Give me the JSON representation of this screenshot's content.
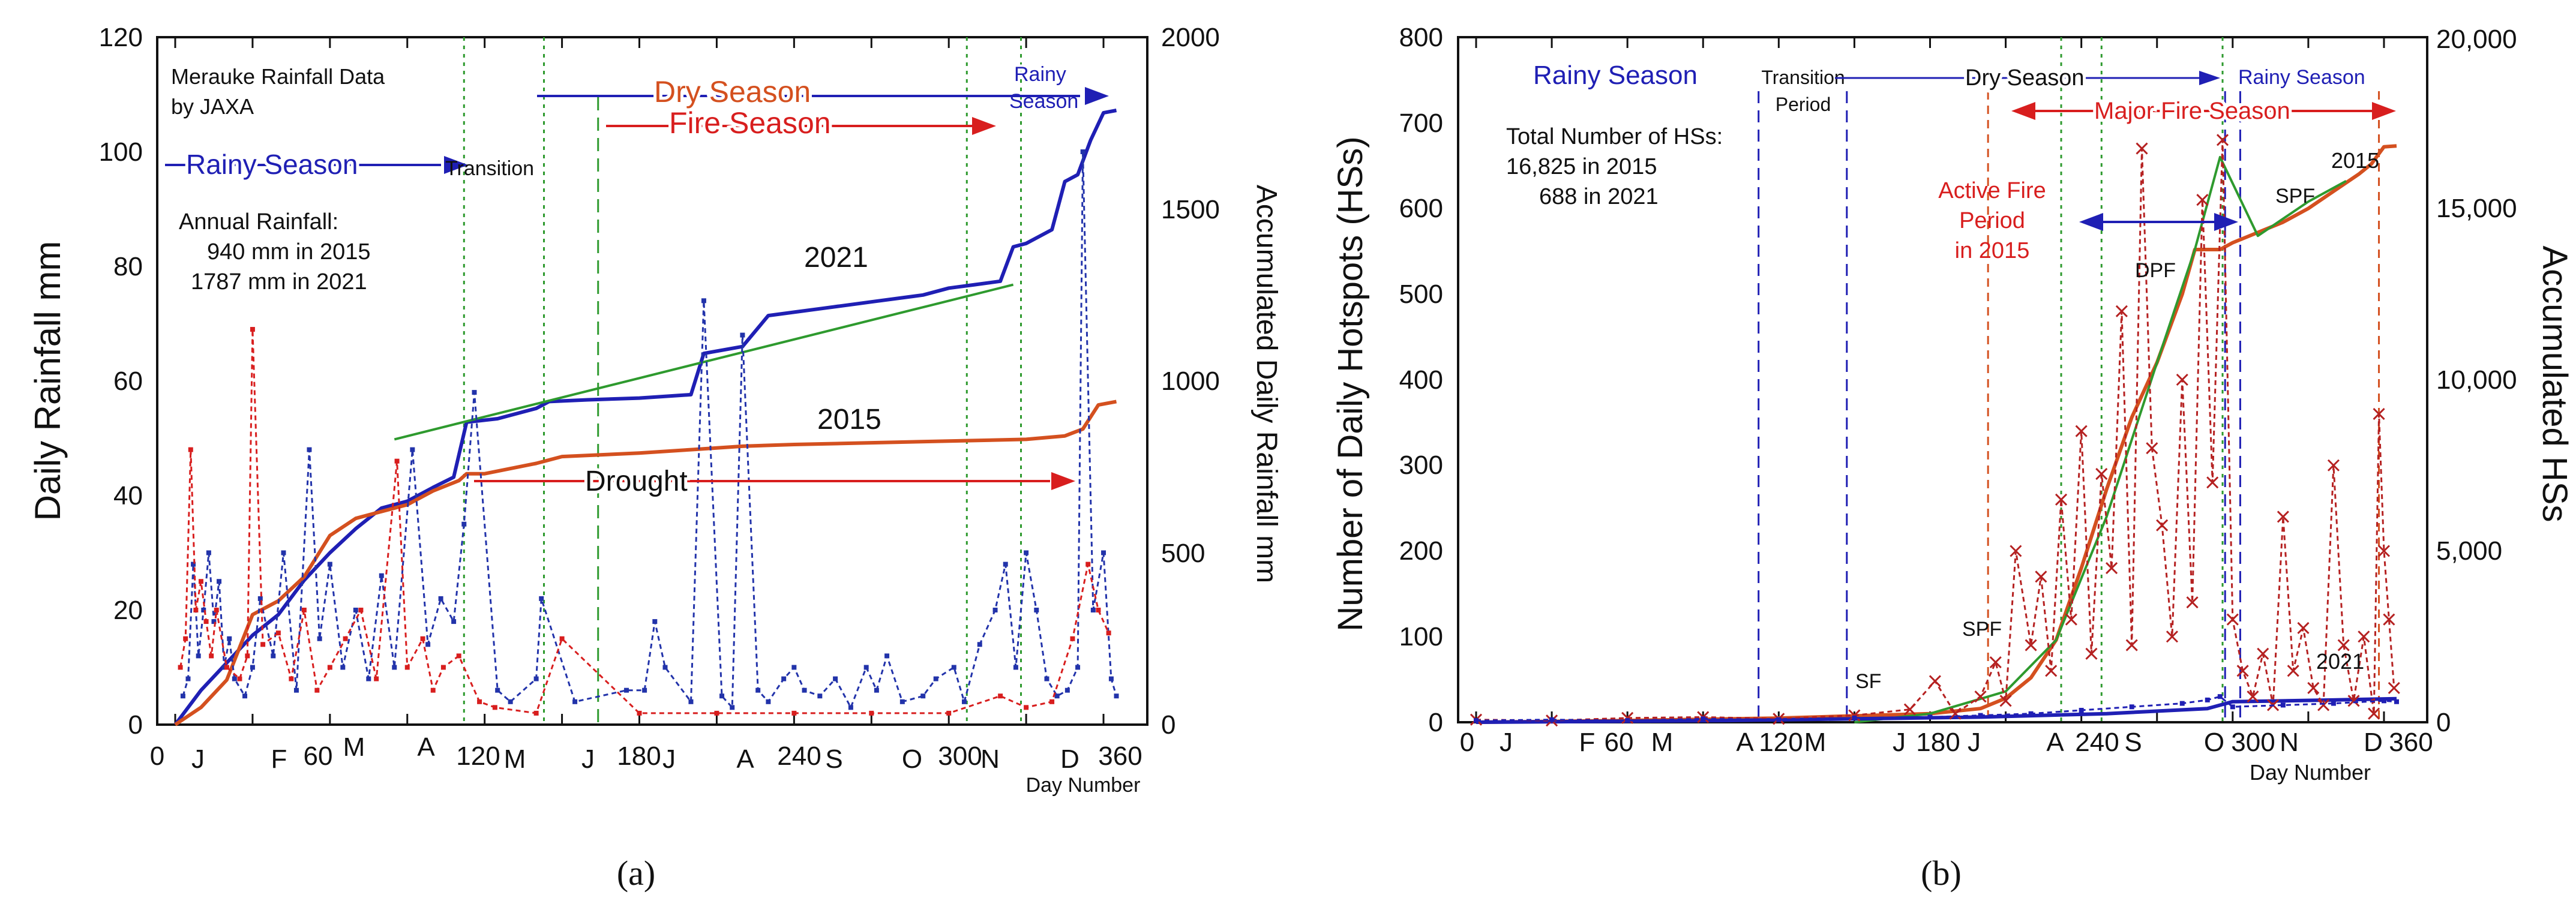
{
  "colors": {
    "blue": "#1f1fb4",
    "navy": "#2233aa",
    "red": "#d81e1e",
    "darkred": "#b52121",
    "orange": "#d4501f",
    "green": "#2e9a2e",
    "black": "#111111"
  },
  "chart_data": [
    {
      "id": "a",
      "panel_label": "(a)",
      "type": "line",
      "title": "",
      "x_axis": {
        "label": "Day Number",
        "range": [
          0,
          370
        ],
        "ticks": [
          "0",
          "120",
          "180",
          "240",
          "300",
          "360"
        ],
        "ticks_small": [
          "60"
        ],
        "month_labels": [
          "J",
          "F",
          "M",
          "A",
          "M",
          "J",
          "J",
          "A",
          "S",
          "O",
          "N",
          "D"
        ]
      },
      "y_axis_left": {
        "label": "Daily Rainfall   mm",
        "range": [
          0,
          120
        ],
        "ticks": [
          "0",
          "20",
          "40",
          "60",
          "80",
          "100",
          "120"
        ]
      },
      "y_axis_right": {
        "label": "Accumulated Daily Rainfall   mm",
        "range": [
          0,
          2000
        ],
        "ticks": [
          "0",
          "500",
          "1000",
          "1500",
          "2000"
        ]
      },
      "annotations": {
        "source1": "Merauke Rainfall Data",
        "source2": "by JAXA",
        "rainy": "Rainy Season",
        "transition": "Transition",
        "dry": "Dry Season",
        "fire": "Fire Season",
        "rainy2a": "Rainy",
        "rainy2b": "Season",
        "annual": "Annual Rainfall:",
        "annual2015": "940 mm in 2015",
        "annual2021": "1787 mm in 2021",
        "y2021": "2021",
        "y2015": "2015",
        "drought": "Drought"
      },
      "vlines_green": [
        112,
        143,
        307,
        328
      ],
      "vlines_green_dashed": [
        164
      ],
      "series": [
        {
          "name": "2021 accumulated",
          "axis": "right",
          "color": "blue",
          "x": [
            0,
            10,
            20,
            30,
            40,
            50,
            60,
            70,
            80,
            90,
            100,
            108,
            113,
            125,
            140,
            145,
            160,
            180,
            200,
            205,
            220,
            230,
            240,
            250,
            270,
            290,
            300,
            310,
            320,
            325,
            330,
            340,
            345,
            350,
            355,
            360,
            365
          ],
          "y": [
            0,
            100,
            180,
            260,
            320,
            420,
            500,
            570,
            630,
            650,
            690,
            720,
            880,
            890,
            920,
            940,
            945,
            950,
            960,
            1080,
            1100,
            1190,
            1200,
            1210,
            1230,
            1250,
            1270,
            1280,
            1290,
            1390,
            1400,
            1440,
            1580,
            1600,
            1700,
            1780,
            1787
          ]
        },
        {
          "name": "2015 accumulated",
          "axis": "right",
          "color": "orange",
          "x": [
            0,
            10,
            20,
            30,
            40,
            50,
            60,
            70,
            80,
            90,
            100,
            110,
            113,
            120,
            140,
            150,
            180,
            200,
            220,
            240,
            270,
            300,
            330,
            345,
            352,
            358,
            365
          ],
          "y": [
            0,
            50,
            130,
            320,
            360,
            430,
            550,
            600,
            620,
            640,
            680,
            710,
            730,
            730,
            760,
            780,
            790,
            800,
            810,
            815,
            820,
            825,
            830,
            840,
            860,
            930,
            940
          ]
        },
        {
          "name": "2021 trend",
          "axis": "right",
          "color": "green",
          "x": [
            85,
            325
          ],
          "y": [
            830,
            1280
          ]
        },
        {
          "name": "2021 daily",
          "axis": "left",
          "color": "navy",
          "x": [
            3,
            5,
            7,
            9,
            11,
            13,
            15,
            17,
            19,
            21,
            23,
            27,
            30,
            33,
            38,
            42,
            47,
            52,
            56,
            60,
            65,
            70,
            75,
            80,
            85,
            92,
            98,
            103,
            108,
            112,
            116,
            125,
            130,
            140,
            142,
            155,
            175,
            182,
            186,
            190,
            200,
            205,
            212,
            216,
            220,
            226,
            230,
            236,
            240,
            244,
            250,
            256,
            262,
            268,
            272,
            276,
            282,
            290,
            295,
            302,
            306,
            312,
            318,
            322,
            326,
            330,
            334,
            338,
            342,
            346,
            350,
            352,
            356,
            360,
            363,
            365
          ],
          "y": [
            5,
            8,
            28,
            12,
            20,
            30,
            18,
            25,
            10,
            15,
            8,
            5,
            10,
            22,
            12,
            30,
            6,
            48,
            15,
            28,
            10,
            20,
            8,
            26,
            10,
            48,
            14,
            22,
            18,
            35,
            58,
            6,
            4,
            8,
            22,
            4,
            6,
            6,
            18,
            10,
            4,
            74,
            5,
            3,
            68,
            6,
            4,
            8,
            10,
            6,
            5,
            8,
            3,
            10,
            6,
            12,
            4,
            5,
            8,
            10,
            4,
            14,
            20,
            28,
            10,
            30,
            20,
            8,
            5,
            6,
            10,
            100,
            20,
            30,
            8,
            5
          ]
        },
        {
          "name": "2015 daily",
          "axis": "left",
          "color": "red",
          "x": [
            2,
            4,
            6,
            8,
            10,
            12,
            14,
            16,
            20,
            25,
            28,
            30,
            34,
            40,
            45,
            50,
            55,
            60,
            66,
            72,
            78,
            86,
            90,
            96,
            100,
            104,
            110,
            118,
            124,
            140,
            150,
            180,
            210,
            240,
            270,
            300,
            320,
            330,
            340,
            348,
            354,
            358,
            362
          ],
          "y": [
            10,
            15,
            48,
            20,
            25,
            18,
            12,
            20,
            10,
            8,
            12,
            69,
            14,
            16,
            8,
            20,
            6,
            10,
            15,
            20,
            8,
            46,
            10,
            15,
            6,
            10,
            12,
            4,
            3,
            2,
            15,
            2,
            2,
            2,
            2,
            2,
            5,
            3,
            4,
            15,
            28,
            20,
            16
          ]
        }
      ]
    },
    {
      "id": "b",
      "panel_label": "(b)",
      "type": "line",
      "title": "",
      "x_axis": {
        "label": "Day Number",
        "range": [
          0,
          370
        ],
        "ticks": [
          "0",
          "60",
          "120",
          "180",
          "240",
          "300",
          "360"
        ],
        "month_labels": [
          "J",
          "F",
          "M",
          "A",
          "M",
          "J",
          "J",
          "A",
          "S",
          "O",
          "N",
          "D"
        ]
      },
      "y_axis_left": {
        "label": "Number of Daily Hotspots (HSs)",
        "range": [
          0,
          800
        ],
        "ticks": [
          "0",
          "100",
          "200",
          "300",
          "400",
          "500",
          "600",
          "700",
          "800"
        ]
      },
      "y_axis_right": {
        "label": "Accumulated HSs",
        "range": [
          0,
          20000
        ],
        "ticks": [
          "0",
          "5,000",
          "10,000",
          "15,000",
          "20,000"
        ]
      },
      "annotations": {
        "rainy": "Rainy Season",
        "transition1": "Transition",
        "transition2": "Period",
        "dry": "Dry Season",
        "rainy2": "Rainy   Season",
        "major_fire": "Major Fire Season",
        "total": "Total Number of HSs:",
        "total2015": "16,825 in 2015",
        "total2021": "688 in 2021",
        "active1": "Active Fire",
        "active2": "Period",
        "active3": "in 2015",
        "y2015": "2015",
        "y2021": "2021",
        "dpf": "DPF",
        "spf_a": "SPF",
        "spf_b": "SPF",
        "sf": "SF"
      },
      "vlines_blue": [
        112,
        147,
        297,
        303
      ],
      "vlines_red": [
        203,
        358
      ],
      "vlines_green": [
        232,
        248,
        296
      ],
      "series": [
        {
          "name": "2015 accumulated",
          "axis": "right",
          "color": "orange",
          "x": [
            0,
            60,
            120,
            180,
            200,
            210,
            220,
            230,
            240,
            250,
            260,
            270,
            280,
            285,
            290,
            295,
            300,
            310,
            320,
            330,
            340,
            350,
            355,
            360,
            365
          ],
          "y": [
            0,
            50,
            120,
            250,
            400,
            700,
            1300,
            2400,
            4500,
            6800,
            8900,
            10500,
            12500,
            13800,
            13800,
            13800,
            14000,
            14300,
            14600,
            15000,
            15500,
            16000,
            16300,
            16800,
            16825
          ]
        },
        {
          "name": "2015 trend",
          "axis": "right",
          "color": "green",
          "x": [
            150,
            180,
            210,
            230,
            250,
            270,
            285,
            295,
            310,
            330,
            345
          ],
          "y": [
            0,
            250,
            900,
            2400,
            6000,
            10500,
            13800,
            16500,
            14200,
            15200,
            15800
          ]
        },
        {
          "name": "2021 accumulated",
          "axis": "right",
          "color": "blue",
          "x": [
            0,
            100,
            200,
            250,
            290,
            300,
            340,
            365
          ],
          "y": [
            0,
            50,
            150,
            250,
            400,
            600,
            650,
            688
          ]
        },
        {
          "name": "2015 daily",
          "axis": "left",
          "color": "darkred",
          "x": [
            0,
            30,
            60,
            90,
            120,
            150,
            172,
            182,
            190,
            200,
            206,
            210,
            214,
            220,
            224,
            228,
            232,
            236,
            240,
            244,
            248,
            252,
            256,
            260,
            264,
            268,
            272,
            276,
            280,
            284,
            288,
            292,
            296,
            300,
            304,
            308,
            312,
            316,
            320,
            324,
            328,
            332,
            336,
            340,
            344,
            348,
            352,
            356,
            358,
            360,
            362,
            364
          ],
          "y": [
            3,
            2,
            5,
            6,
            4,
            8,
            15,
            48,
            10,
            30,
            70,
            25,
            200,
            90,
            170,
            60,
            260,
            120,
            340,
            80,
            290,
            180,
            480,
            90,
            670,
            320,
            230,
            100,
            400,
            140,
            610,
            280,
            680,
            120,
            60,
            30,
            80,
            20,
            240,
            60,
            110,
            40,
            20,
            300,
            90,
            25,
            100,
            10,
            360,
            200,
            120,
            40
          ]
        },
        {
          "name": "2021 daily",
          "axis": "left",
          "color": "blue",
          "x": [
            0,
            30,
            60,
            90,
            120,
            150,
            180,
            200,
            220,
            240,
            260,
            280,
            290,
            295,
            300,
            320,
            340,
            360,
            365
          ],
          "y": [
            2,
            3,
            2,
            4,
            3,
            5,
            6,
            8,
            10,
            14,
            18,
            22,
            26,
            30,
            18,
            20,
            22,
            25,
            24
          ]
        }
      ]
    }
  ]
}
